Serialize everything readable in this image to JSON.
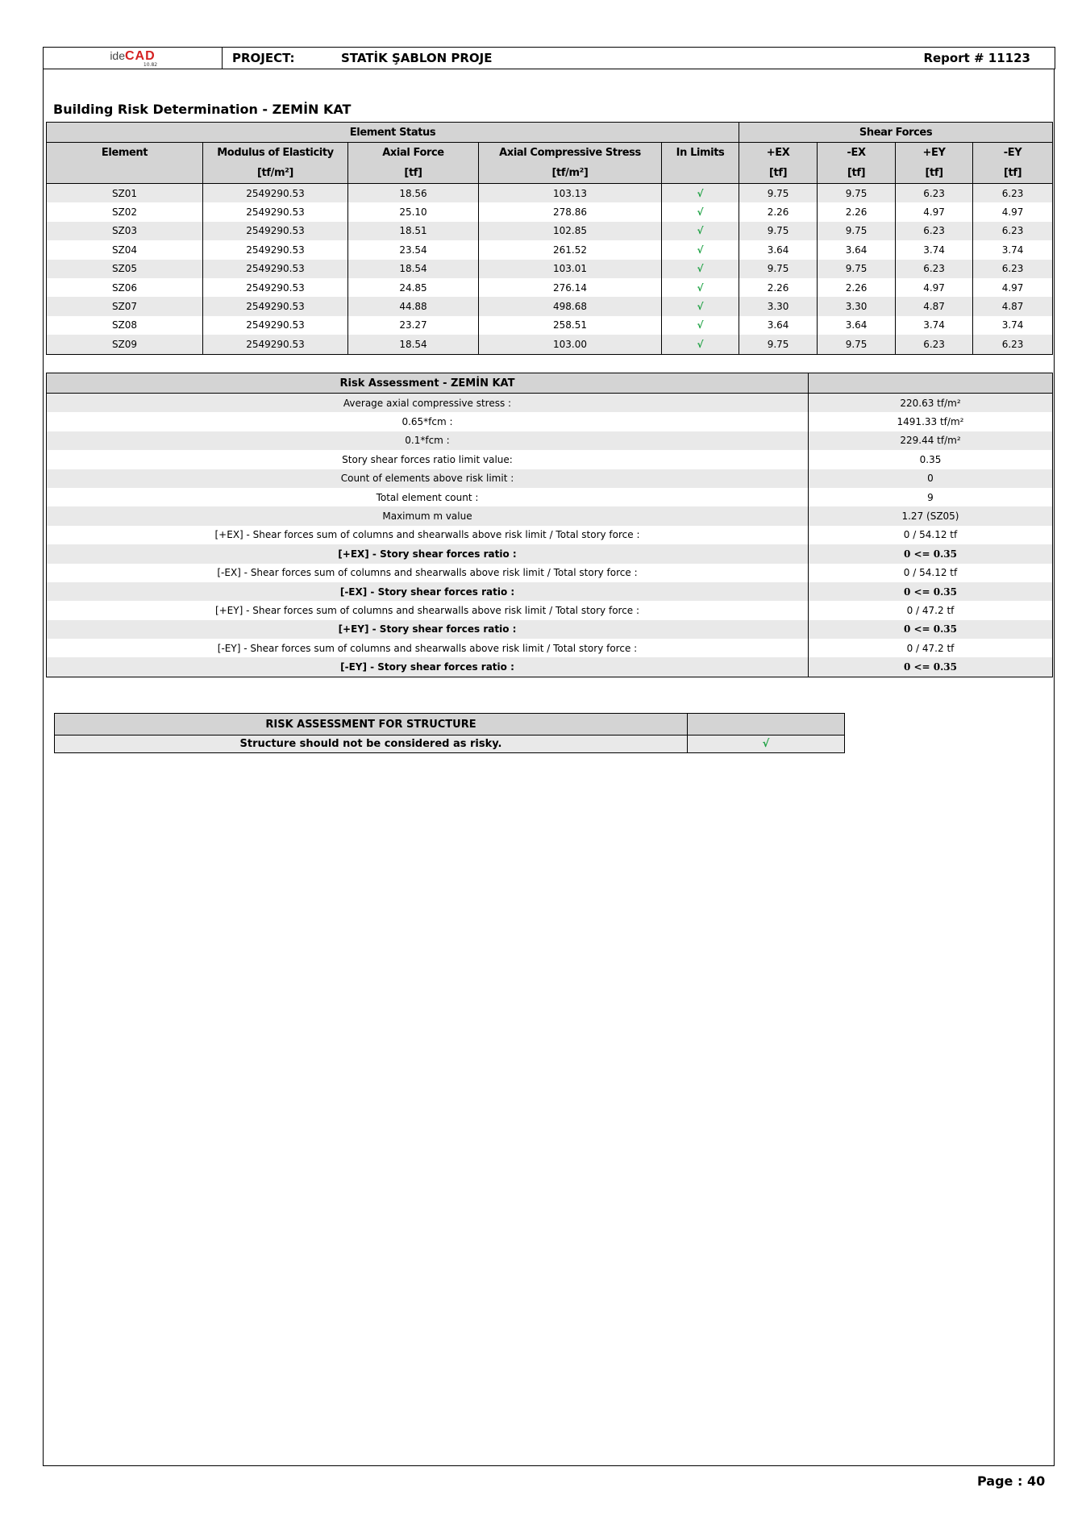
{
  "header": {
    "logo_text": "ideCAD",
    "logo_version": "10.82",
    "project_label": "PROJECT:",
    "project_name": "STATİK ŞABLON PROJE",
    "report": "Report # 11123"
  },
  "title": "Building Risk Determination - ZEMİN KAT",
  "element_table": {
    "group_headers": [
      "Element Status",
      "Shear Forces"
    ],
    "columns": [
      {
        "label": "Element",
        "unit": ""
      },
      {
        "label": "Modulus of Elasticity",
        "unit": "[tf/m²]"
      },
      {
        "label": "Axial Force",
        "unit": "[tf]"
      },
      {
        "label": "Axial Compressive Stress",
        "unit": "[tf/m²]"
      },
      {
        "label": "In Limits",
        "unit": ""
      },
      {
        "label": "+EX",
        "unit": "[tf]"
      },
      {
        "label": "-EX",
        "unit": "[tf]"
      },
      {
        "label": "+EY",
        "unit": "[tf]"
      },
      {
        "label": "-EY",
        "unit": "[tf]"
      }
    ],
    "check_mark": "√",
    "check_color": "#1aa040",
    "rows": [
      [
        "SZ01",
        "2549290.53",
        "18.56",
        "103.13",
        "√",
        "9.75",
        "9.75",
        "6.23",
        "6.23"
      ],
      [
        "SZ02",
        "2549290.53",
        "25.10",
        "278.86",
        "√",
        "2.26",
        "2.26",
        "4.97",
        "4.97"
      ],
      [
        "SZ03",
        "2549290.53",
        "18.51",
        "102.85",
        "√",
        "9.75",
        "9.75",
        "6.23",
        "6.23"
      ],
      [
        "SZ04",
        "2549290.53",
        "23.54",
        "261.52",
        "√",
        "3.64",
        "3.64",
        "3.74",
        "3.74"
      ],
      [
        "SZ05",
        "2549290.53",
        "18.54",
        "103.01",
        "√",
        "9.75",
        "9.75",
        "6.23",
        "6.23"
      ],
      [
        "SZ06",
        "2549290.53",
        "24.85",
        "276.14",
        "√",
        "2.26",
        "2.26",
        "4.97",
        "4.97"
      ],
      [
        "SZ07",
        "2549290.53",
        "44.88",
        "498.68",
        "√",
        "3.30",
        "3.30",
        "4.87",
        "4.87"
      ],
      [
        "SZ08",
        "2549290.53",
        "23.27",
        "258.51",
        "√",
        "3.64",
        "3.64",
        "3.74",
        "3.74"
      ],
      [
        "SZ09",
        "2549290.53",
        "18.54",
        "103.00",
        "√",
        "9.75",
        "9.75",
        "6.23",
        "6.23"
      ]
    ]
  },
  "risk_table": {
    "header": "Risk Assessment - ZEMİN KAT",
    "rows": [
      {
        "label": "Average axial compressive stress :",
        "value": "220.63 tf/m²",
        "bold": false
      },
      {
        "label": "0.65*fcm :",
        "value": "1491.33 tf/m²",
        "bold": false
      },
      {
        "label": "0.1*fcm :",
        "value": "229.44 tf/m²",
        "bold": false
      },
      {
        "label": "Story shear forces ratio limit value:",
        "value": "0.35",
        "bold": false
      },
      {
        "label": "Count of elements above risk limit :",
        "value": "0",
        "bold": false
      },
      {
        "label": "Total element count :",
        "value": "9",
        "bold": false
      },
      {
        "label": "Maximum m value",
        "value": "1.27 (SZ05)",
        "bold": false
      },
      {
        "label": "[+EX] - Shear forces sum of columns and shearwalls above risk limit / Total story force :",
        "value": "0 / 54.12  tf",
        "bold": false
      },
      {
        "label": "[+EX] - Story shear forces ratio :",
        "value": "0 <= 0.35",
        "bold": true
      },
      {
        "label": "[-EX] - Shear forces sum of columns and shearwalls above risk limit / Total story force :",
        "value": "0 / 54.12  tf",
        "bold": false
      },
      {
        "label": "[-EX] - Story shear forces ratio :",
        "value": "0 <= 0.35",
        "bold": true
      },
      {
        "label": "[+EY] - Shear forces sum of columns and shearwalls above risk limit / Total story force :",
        "value": "0 / 47.2  tf",
        "bold": false
      },
      {
        "label": "[+EY] - Story shear forces ratio :",
        "value": "0 <= 0.35",
        "bold": true
      },
      {
        "label": "[-EY] - Shear forces sum of columns and shearwalls above risk limit / Total story force :",
        "value": "0 / 47.2  tf",
        "bold": false
      },
      {
        "label": "[-EY] - Story shear forces ratio :",
        "value": "0 <= 0.35",
        "bold": true
      }
    ]
  },
  "structure_table": {
    "header": "RISK ASSESSMENT FOR STRUCTURE",
    "result": "Structure should not be considered as risky.",
    "result_mark": "√"
  },
  "footer": {
    "page": "Page : 40"
  }
}
